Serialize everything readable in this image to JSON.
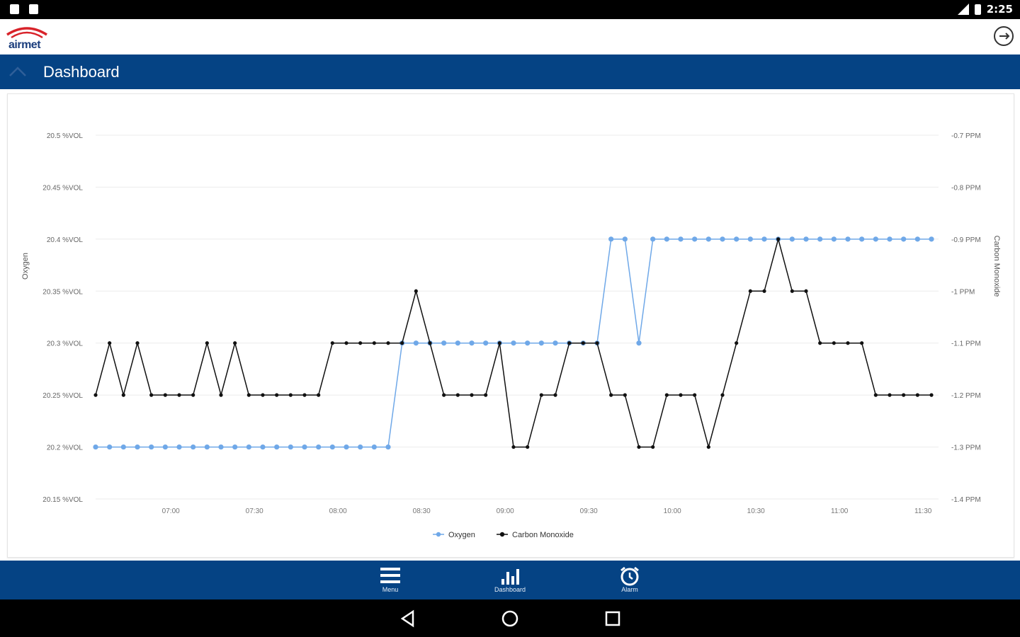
{
  "status_bar": {
    "time": "2:25",
    "icons": [
      "clipboard-icon",
      "android-icon",
      "signal-icon",
      "battery-icon"
    ]
  },
  "app": {
    "logo_text": "airmet",
    "logout_icon": "logout-icon"
  },
  "header": {
    "title": "Dashboard",
    "collapse_icon": "chevron-up-icon"
  },
  "bottom_nav": {
    "items": [
      {
        "label": "Menu",
        "icon": "menu-icon"
      },
      {
        "label": "Dashboard",
        "icon": "bar-chart-icon"
      },
      {
        "label": "Alarm",
        "icon": "alarm-clock-icon"
      }
    ]
  },
  "colors": {
    "primary": "#054384",
    "oxygen": "#6fa8e8",
    "carbon_monoxide": "#111111"
  },
  "chart_data": {
    "type": "line",
    "x_tick_labels": [
      "07:00",
      "07:30",
      "08:00",
      "08:30",
      "09:00",
      "09:30",
      "10:00",
      "10:30",
      "11:00",
      "11:30"
    ],
    "x_range": [
      "06:33",
      "11:33"
    ],
    "y_left": {
      "label": "Oxygen",
      "ticks": [
        "20.5 %VOL",
        "20.45 %VOL",
        "20.4 %VOL",
        "20.35 %VOL",
        "20.3 %VOL",
        "20.25 %VOL",
        "20.2 %VOL",
        "20.15 %VOL"
      ],
      "range": [
        20.15,
        20.5
      ]
    },
    "y_right": {
      "label": "Carbon Monoxide",
      "ticks": [
        "-0.7 PPM",
        "-0.8 PPM",
        "-0.9 PPM",
        "-1 PPM",
        "-1.1 PPM",
        "-1.2 PPM",
        "-1.3 PPM",
        "-1.4 PPM"
      ],
      "range": [
        -1.4,
        -0.7
      ]
    },
    "grid": true,
    "legend_position": "bottom-center",
    "series": [
      {
        "name": "Oxygen",
        "axis": "left",
        "x": [
          "06:33",
          "06:38",
          "06:43",
          "06:48",
          "06:53",
          "06:58",
          "07:03",
          "07:08",
          "07:13",
          "07:18",
          "07:23",
          "07:28",
          "07:33",
          "07:38",
          "07:43",
          "07:48",
          "07:53",
          "07:58",
          "08:03",
          "08:08",
          "08:13",
          "08:18",
          "08:23",
          "08:28",
          "08:33",
          "08:38",
          "08:43",
          "08:48",
          "08:53",
          "08:58",
          "09:03",
          "09:08",
          "09:13",
          "09:18",
          "09:23",
          "09:28",
          "09:33",
          "09:38",
          "09:43",
          "09:48",
          "09:53",
          "09:58",
          "10:03",
          "10:08",
          "10:13",
          "10:18",
          "10:23",
          "10:28",
          "10:33",
          "10:38",
          "10:43",
          "10:48",
          "10:53",
          "10:58",
          "11:03",
          "11:08",
          "11:13",
          "11:18",
          "11:23",
          "11:28",
          "11:33"
        ],
        "y": [
          20.2,
          20.2,
          20.2,
          20.2,
          20.2,
          20.2,
          20.2,
          20.2,
          20.2,
          20.2,
          20.2,
          20.2,
          20.2,
          20.2,
          20.2,
          20.2,
          20.2,
          20.2,
          20.2,
          20.2,
          20.2,
          20.2,
          20.3,
          20.3,
          20.3,
          20.3,
          20.3,
          20.3,
          20.3,
          20.3,
          20.3,
          20.3,
          20.3,
          20.3,
          20.3,
          20.3,
          20.3,
          20.4,
          20.4,
          20.3,
          20.4,
          20.4,
          20.4,
          20.4,
          20.4,
          20.4,
          20.4,
          20.4,
          20.4,
          20.4,
          20.4,
          20.4,
          20.4,
          20.4,
          20.4,
          20.4,
          20.4,
          20.4,
          20.4,
          20.4,
          20.4
        ]
      },
      {
        "name": "Carbon Monoxide",
        "axis": "right",
        "x": [
          "06:33",
          "06:38",
          "06:43",
          "06:48",
          "06:53",
          "06:58",
          "07:03",
          "07:08",
          "07:13",
          "07:18",
          "07:23",
          "07:28",
          "07:33",
          "07:38",
          "07:43",
          "07:48",
          "07:53",
          "07:58",
          "08:03",
          "08:08",
          "08:13",
          "08:18",
          "08:23",
          "08:28",
          "08:33",
          "08:38",
          "08:43",
          "08:48",
          "08:53",
          "08:58",
          "09:03",
          "09:08",
          "09:13",
          "09:18",
          "09:23",
          "09:28",
          "09:33",
          "09:38",
          "09:43",
          "09:48",
          "09:53",
          "09:58",
          "10:03",
          "10:08",
          "10:13",
          "10:18",
          "10:23",
          "10:28",
          "10:33",
          "10:38",
          "10:43",
          "10:48",
          "10:53",
          "10:58",
          "11:03",
          "11:08",
          "11:13",
          "11:18",
          "11:23",
          "11:28",
          "11:33"
        ],
        "y": [
          -1.2,
          -1.1,
          -1.2,
          -1.1,
          -1.2,
          -1.2,
          -1.2,
          -1.2,
          -1.1,
          -1.2,
          -1.1,
          -1.2,
          -1.2,
          -1.2,
          -1.2,
          -1.2,
          -1.2,
          -1.1,
          -1.1,
          -1.1,
          -1.1,
          -1.1,
          -1.1,
          -1.0,
          -1.1,
          -1.2,
          -1.2,
          -1.2,
          -1.2,
          -1.1,
          -1.3,
          -1.3,
          -1.2,
          -1.2,
          -1.1,
          -1.1,
          -1.1,
          -1.2,
          -1.2,
          -1.3,
          -1.3,
          -1.2,
          -1.2,
          -1.2,
          -1.3,
          -1.2,
          -1.1,
          -1.0,
          -1.0,
          -0.9,
          -1.0,
          -1.0,
          -1.1,
          -1.1,
          -1.1,
          -1.1,
          -1.2,
          -1.2,
          -1.2,
          -1.2,
          -1.2
        ]
      }
    ]
  }
}
